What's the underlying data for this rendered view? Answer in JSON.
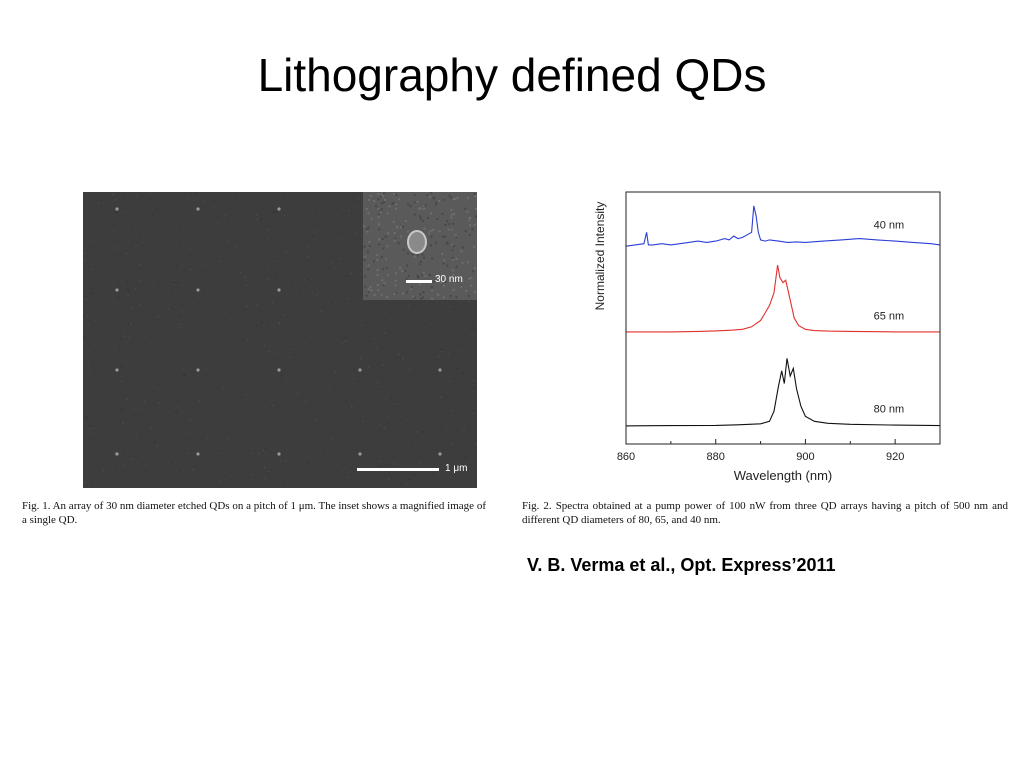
{
  "slide": {
    "title": "Lithography defined QDs",
    "citation": "V. B. Verma et al., Opt. Express’2011"
  },
  "figure1": {
    "inset_scale_label": "30 nm",
    "scale_bar_label": "1 μm",
    "caption": "Fig. 1. An array of 30 nm diameter etched QDs on a pitch of 1 μm. The inset shows a magnified image of a single QD."
  },
  "figure2": {
    "caption": "Fig. 2. Spectra obtained at a pump power of 100 nW from three QD arrays having a pitch of 500 nm and different QD diameters of 80, 65, and 40 nm."
  },
  "chart_data": {
    "type": "line",
    "title": "",
    "xlabel": "Wavelength (nm)",
    "ylabel": "Normalized Intensity",
    "xlim": [
      860,
      930
    ],
    "ylim": [
      0,
      1
    ],
    "xticks": [
      860,
      880,
      900,
      920
    ],
    "y_tick_labels_shown": false,
    "grid": false,
    "legend": "none",
    "series": [
      {
        "name": "40 nm",
        "color": "#2b3fd6",
        "x": [
          860,
          862,
          864,
          864.6,
          865,
          866,
          868,
          870,
          872,
          874,
          876,
          878,
          880,
          881,
          882,
          883,
          884,
          885,
          886,
          887,
          888,
          888.5,
          889,
          889.5,
          890,
          891,
          892,
          894,
          896,
          898,
          900,
          904,
          908,
          912,
          916,
          920,
          924,
          928,
          930
        ],
        "y": [
          0.785,
          0.79,
          0.795,
          0.84,
          0.79,
          0.79,
          0.795,
          0.79,
          0.795,
          0.8,
          0.805,
          0.8,
          0.805,
          0.81,
          0.815,
          0.81,
          0.825,
          0.815,
          0.82,
          0.83,
          0.84,
          0.945,
          0.905,
          0.84,
          0.81,
          0.805,
          0.81,
          0.805,
          0.8,
          0.802,
          0.8,
          0.805,
          0.81,
          0.815,
          0.81,
          0.805,
          0.8,
          0.795,
          0.79
        ]
      },
      {
        "name": "65 nm",
        "color": "#e0302a",
        "x": [
          860,
          870,
          876,
          880,
          884,
          886,
          888,
          890,
          891,
          892,
          893,
          893.8,
          894.3,
          895,
          895.6,
          896.5,
          897.5,
          898.5,
          900,
          902,
          905,
          910,
          920,
          930
        ],
        "y": [
          0.445,
          0.445,
          0.447,
          0.449,
          0.452,
          0.455,
          0.465,
          0.49,
          0.52,
          0.55,
          0.6,
          0.71,
          0.66,
          0.64,
          0.65,
          0.58,
          0.5,
          0.47,
          0.455,
          0.45,
          0.448,
          0.447,
          0.445,
          0.445
        ]
      },
      {
        "name": "80 nm",
        "color": "#111111",
        "x": [
          860,
          870,
          880,
          885,
          890,
          892,
          893,
          894,
          894.7,
          895.3,
          895.9,
          896.6,
          897.3,
          898,
          899,
          900,
          902,
          905,
          910,
          920,
          930
        ],
        "y": [
          0.072,
          0.073,
          0.074,
          0.076,
          0.08,
          0.09,
          0.13,
          0.23,
          0.29,
          0.24,
          0.34,
          0.27,
          0.3,
          0.22,
          0.15,
          0.11,
          0.09,
          0.082,
          0.078,
          0.075,
          0.073
        ]
      }
    ]
  }
}
